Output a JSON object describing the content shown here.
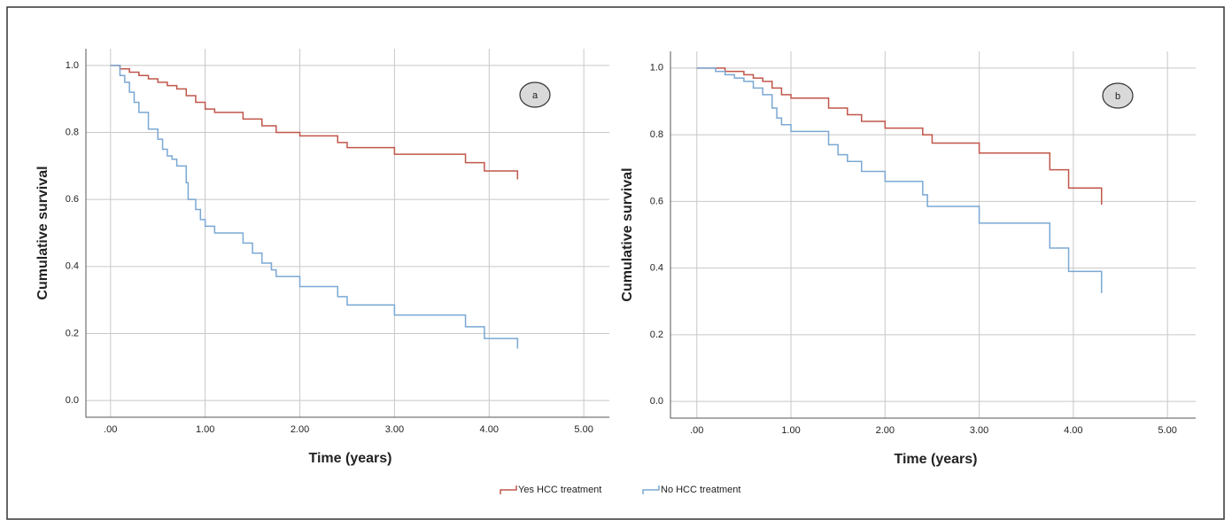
{
  "chart_data": [
    {
      "type": "line",
      "step": "post",
      "annotation": "a",
      "x_label": "Time (years)",
      "y_label": "Cumulative survival",
      "xlim": [
        -0.26,
        5.27
      ],
      "ylim": [
        -0.05,
        1.05
      ],
      "xticks": [
        {
          "value": 0,
          "label": ".00"
        },
        {
          "value": 1,
          "label": "1.00"
        },
        {
          "value": 2,
          "label": "2.00"
        },
        {
          "value": 3,
          "label": "3.00"
        },
        {
          "value": 4,
          "label": "4.00"
        },
        {
          "value": 5,
          "label": "5.00"
        }
      ],
      "yticks": [
        {
          "value": 0,
          "label": "0.0"
        },
        0.2,
        0.4,
        0.6,
        0.8,
        {
          "value": 1,
          "label": "1.0"
        }
      ],
      "grid": true,
      "series": [
        {
          "color": "#c0564a",
          "x": [
            0,
            0.1,
            0.2,
            0.3,
            0.4,
            0.5,
            0.6,
            0.7,
            0.8,
            0.9,
            1.0,
            1.1,
            1.4,
            1.6,
            1.75,
            2.0,
            2.4,
            2.5,
            3.0,
            3.75,
            3.95,
            4.3
          ],
          "values": [
            1.0,
            0.99,
            0.98,
            0.97,
            0.96,
            0.95,
            0.94,
            0.93,
            0.91,
            0.89,
            0.87,
            0.86,
            0.84,
            0.82,
            0.8,
            0.79,
            0.77,
            0.755,
            0.735,
            0.71,
            0.685,
            0.66
          ]
        },
        {
          "color": "#7aa8d4",
          "x": [
            0,
            0.1,
            0.15,
            0.2,
            0.25,
            0.3,
            0.4,
            0.5,
            0.55,
            0.6,
            0.65,
            0.7,
            0.8,
            0.82,
            0.9,
            0.95,
            1.0,
            1.1,
            1.4,
            1.5,
            1.6,
            1.7,
            1.75,
            2.0,
            2.4,
            2.5,
            3.0,
            3.75,
            3.95,
            4.3
          ],
          "values": [
            1.0,
            0.97,
            0.95,
            0.92,
            0.89,
            0.86,
            0.81,
            0.78,
            0.75,
            0.73,
            0.72,
            0.7,
            0.65,
            0.6,
            0.57,
            0.54,
            0.52,
            0.5,
            0.47,
            0.44,
            0.41,
            0.39,
            0.37,
            0.34,
            0.31,
            0.285,
            0.255,
            0.22,
            0.185,
            0.155
          ]
        }
      ]
    },
    {
      "type": "line",
      "step": "post",
      "annotation": "b",
      "x_label": "Time (years)",
      "y_label": "Cumulative survival",
      "xlim": [
        -0.28,
        5.3
      ],
      "ylim": [
        -0.05,
        1.05
      ],
      "xticks": [
        {
          "value": 0,
          "label": ".00"
        },
        {
          "value": 1,
          "label": "1.00"
        },
        {
          "value": 2,
          "label": "2.00"
        },
        {
          "value": 3,
          "label": "3.00"
        },
        {
          "value": 4,
          "label": "4.00"
        },
        {
          "value": 5,
          "label": "5.00"
        }
      ],
      "yticks": [
        {
          "value": 0,
          "label": "0.0"
        },
        0.2,
        0.4,
        0.6,
        0.8,
        {
          "value": 1,
          "label": "1.0"
        }
      ],
      "grid": true,
      "series": [
        {
          "color": "#c0564a",
          "x": [
            0,
            0.3,
            0.5,
            0.6,
            0.7,
            0.8,
            0.9,
            1.0,
            1.4,
            1.6,
            1.75,
            2.0,
            2.4,
            2.5,
            3.0,
            3.75,
            3.95,
            4.3
          ],
          "values": [
            1.0,
            0.99,
            0.98,
            0.97,
            0.96,
            0.94,
            0.92,
            0.91,
            0.88,
            0.86,
            0.84,
            0.82,
            0.8,
            0.775,
            0.745,
            0.695,
            0.64,
            0.59
          ]
        },
        {
          "color": "#7aa8d4",
          "x": [
            0,
            0.2,
            0.3,
            0.4,
            0.5,
            0.6,
            0.7,
            0.8,
            0.85,
            0.9,
            1.0,
            1.4,
            1.5,
            1.6,
            1.75,
            2.0,
            2.4,
            2.45,
            3.0,
            3.75,
            3.95,
            4.3
          ],
          "values": [
            1.0,
            0.99,
            0.98,
            0.97,
            0.96,
            0.94,
            0.92,
            0.88,
            0.85,
            0.83,
            0.81,
            0.77,
            0.74,
            0.72,
            0.69,
            0.66,
            0.62,
            0.585,
            0.535,
            0.46,
            0.39,
            0.325
          ]
        }
      ]
    }
  ],
  "legend": [
    {
      "name": "Yes HCC treatment",
      "color": "#c0564a"
    },
    {
      "name": "No HCC treatment",
      "color": "#7aa8d4"
    }
  ]
}
